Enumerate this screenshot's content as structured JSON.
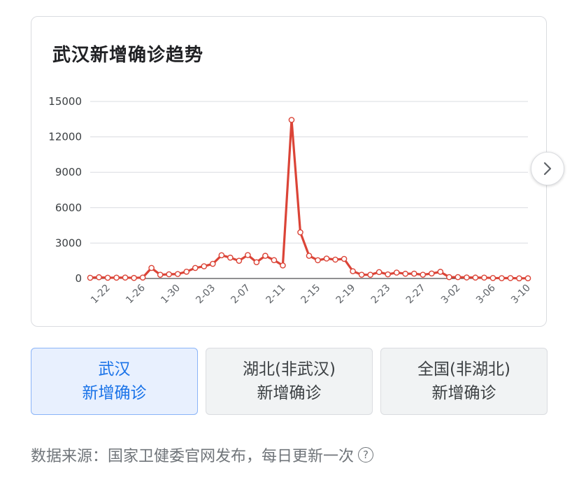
{
  "card": {
    "title": "武汉新增确诊趋势"
  },
  "chart_data": {
    "type": "line",
    "x": [
      "1-20",
      "1-21",
      "1-22",
      "1-23",
      "1-24",
      "1-25",
      "1-26",
      "1-27",
      "1-28",
      "1-29",
      "1-30",
      "1-31",
      "2-01",
      "2-02",
      "2-03",
      "2-04",
      "2-05",
      "2-06",
      "2-07",
      "2-08",
      "2-09",
      "2-10",
      "2-11",
      "2-12",
      "2-13",
      "2-14",
      "2-15",
      "2-16",
      "2-17",
      "2-18",
      "2-19",
      "2-20",
      "2-21",
      "2-22",
      "2-23",
      "2-24",
      "2-25",
      "2-26",
      "2-27",
      "2-28",
      "2-29",
      "3-01",
      "3-02",
      "3-03",
      "3-04",
      "3-05",
      "3-06",
      "3-07",
      "3-08",
      "3-09",
      "3-10"
    ],
    "x_tick_labels": [
      "1-22",
      "1-26",
      "1-30",
      "2-03",
      "2-07",
      "2-11",
      "2-15",
      "2-19",
      "2-23",
      "2-27",
      "3-02",
      "3-06",
      "3-10"
    ],
    "values": [
      60,
      105,
      62,
      70,
      77,
      46,
      80,
      892,
      315,
      356,
      378,
      576,
      894,
      1033,
      1242,
      1967,
      1766,
      1501,
      1985,
      1379,
      1921,
      1552,
      1104,
      13436,
      3910,
      1923,
      1548,
      1690,
      1600,
      1660,
      615,
      319,
      314,
      541,
      348,
      499,
      401,
      409,
      318,
      423,
      565,
      116,
      114,
      88,
      75,
      74,
      41,
      27,
      36,
      13,
      17
    ],
    "ylim": [
      0,
      15000
    ],
    "y_ticks": [
      "0",
      "3000",
      "6000",
      "9000",
      "12000",
      "15000"
    ],
    "grid": true,
    "line_color": "#db4437",
    "title": "武汉新增确诊趋势",
    "xlabel": "",
    "ylabel": ""
  },
  "tabs": [
    {
      "line1": "武汉",
      "line2": "新增确诊"
    },
    {
      "line1": "湖北(非武汉)",
      "line2": "新增确诊"
    },
    {
      "line1": "全国(非湖北)",
      "line2": "新增确诊"
    }
  ],
  "footer": {
    "source": "数据来源：国家卫健委官网发布，每日更新一次",
    "help_icon": "?"
  },
  "icons": {
    "next": "chevron-right-icon",
    "help": "question-circle-icon"
  },
  "colors": {
    "active_tab_bg": "#e8f0fe",
    "active_tab_text": "#1a73e8",
    "line": "#db4437"
  }
}
